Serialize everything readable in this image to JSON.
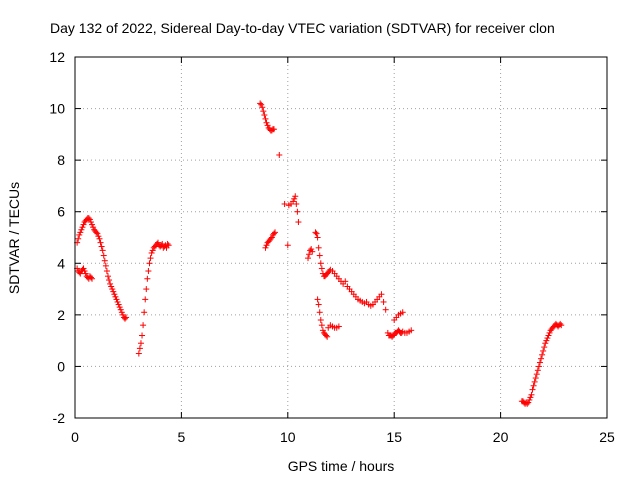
{
  "chart_data": {
    "type": "scatter",
    "title": "Day 132 of 2022, Sidereal Day-to-day VTEC variation (SDTVAR) for receiver clon",
    "xlabel": "GPS time / hours",
    "ylabel": "SDTVAR / TECUs",
    "xlim": [
      0,
      25
    ],
    "ylim": [
      -2,
      12
    ],
    "xticks": [
      0,
      5,
      10,
      15,
      20,
      25
    ],
    "yticks": [
      -2,
      0,
      2,
      4,
      6,
      8,
      10,
      12
    ],
    "grid": true,
    "marker": "+",
    "color": "#ff0000",
    "series": [
      {
        "name": "SDTVAR",
        "x": [
          0.1,
          0.15,
          0.2,
          0.25,
          0.3,
          0.35,
          0.4,
          0.45,
          0.5,
          0.55,
          0.6,
          0.65,
          0.7,
          0.75,
          0.8,
          0.85,
          0.9,
          0.95,
          1.0,
          1.05,
          1.1,
          1.15,
          1.2,
          1.25,
          1.3,
          1.35,
          1.4,
          1.45,
          1.5,
          1.55,
          1.6,
          1.65,
          1.7,
          1.75,
          1.8,
          1.85,
          1.9,
          1.95,
          2.0,
          2.05,
          2.1,
          2.15,
          2.2,
          2.25,
          2.3,
          2.35,
          2.4,
          0.1,
          0.15,
          0.2,
          0.25,
          0.3,
          0.35,
          0.4,
          0.45,
          0.5,
          0.55,
          0.6,
          0.65,
          0.7,
          0.75,
          0.8,
          3.0,
          3.05,
          3.1,
          3.15,
          3.2,
          3.25,
          3.3,
          3.35,
          3.4,
          3.45,
          3.5,
          3.55,
          3.6,
          3.65,
          3.7,
          3.75,
          3.8,
          3.85,
          3.9,
          3.95,
          4.0,
          4.05,
          4.1,
          4.15,
          4.2,
          4.25,
          4.3,
          4.35,
          4.4,
          8.7,
          8.75,
          8.8,
          8.85,
          8.9,
          8.95,
          9.0,
          9.05,
          9.1,
          9.15,
          9.2,
          9.25,
          9.3,
          9.35,
          8.95,
          9.0,
          9.05,
          9.1,
          9.15,
          9.2,
          9.25,
          9.3,
          9.35,
          9.4,
          9.6,
          9.85,
          10.0,
          10.05,
          10.15,
          10.25,
          10.3,
          10.35,
          10.4,
          10.45,
          10.5,
          10.95,
          11.0,
          11.05,
          11.1,
          11.15,
          11.3,
          11.35,
          11.4,
          11.45,
          11.5,
          11.55,
          11.6,
          11.65,
          11.7,
          11.75,
          11.8,
          11.85,
          11.9,
          11.95,
          12.0,
          12.1,
          12.2,
          12.3,
          12.4,
          12.5,
          12.6,
          12.7,
          12.8,
          12.9,
          13.0,
          13.1,
          13.2,
          13.3,
          13.4,
          13.5,
          13.6,
          13.7,
          13.8,
          13.9,
          14.0,
          14.1,
          14.2,
          14.3,
          14.4,
          14.5,
          14.6,
          11.4,
          11.45,
          11.5,
          11.55,
          11.6,
          11.65,
          11.7,
          11.75,
          11.8,
          11.85,
          11.9,
          12.0,
          12.1,
          12.2,
          12.3,
          12.4,
          14.7,
          14.75,
          14.8,
          14.85,
          14.9,
          14.95,
          15.0,
          15.05,
          15.1,
          15.15,
          15.2,
          15.25,
          15.3,
          15.35,
          15.4,
          15.5,
          15.6,
          15.7,
          15.8,
          15.0,
          15.1,
          15.2,
          15.3,
          15.4,
          21.0,
          21.05,
          21.1,
          21.15,
          21.2,
          21.25,
          21.3,
          21.35,
          21.4,
          21.45,
          21.5,
          21.55,
          21.6,
          21.65,
          21.7,
          21.75,
          21.8,
          21.85,
          21.9,
          21.95,
          22.0,
          22.05,
          22.1,
          22.15,
          22.2,
          22.25,
          22.3,
          22.35,
          22.4,
          22.45,
          22.5,
          22.55,
          22.6,
          22.65,
          22.7,
          22.75,
          22.8,
          22.85
        ],
        "y": [
          4.8,
          4.95,
          5.1,
          5.2,
          5.3,
          5.4,
          5.5,
          5.6,
          5.65,
          5.7,
          5.75,
          5.75,
          5.7,
          5.6,
          5.5,
          5.4,
          5.3,
          5.25,
          5.2,
          5.15,
          5.05,
          4.95,
          4.8,
          4.65,
          4.5,
          4.3,
          4.1,
          3.9,
          3.7,
          3.5,
          3.35,
          3.2,
          3.1,
          3.0,
          2.9,
          2.8,
          2.7,
          2.6,
          2.5,
          2.4,
          2.3,
          2.2,
          2.1,
          2.0,
          1.9,
          1.85,
          1.9,
          3.8,
          3.7,
          3.65,
          3.6,
          3.7,
          3.75,
          3.8,
          3.7,
          3.6,
          3.5,
          3.45,
          3.4,
          3.5,
          3.45,
          3.4,
          0.5,
          0.7,
          0.9,
          1.2,
          1.6,
          2.1,
          2.6,
          3.0,
          3.4,
          3.7,
          4.0,
          4.2,
          4.4,
          4.5,
          4.6,
          4.65,
          4.7,
          4.75,
          4.8,
          4.7,
          4.65,
          4.7,
          4.75,
          4.6,
          4.65,
          4.7,
          4.6,
          4.75,
          4.7,
          10.2,
          10.15,
          10.05,
          9.9,
          9.75,
          9.6,
          9.45,
          9.35,
          9.25,
          9.2,
          9.15,
          9.15,
          9.2,
          9.2,
          4.6,
          4.7,
          4.8,
          4.85,
          4.9,
          4.95,
          5.0,
          5.1,
          5.15,
          5.2,
          8.2,
          6.3,
          4.7,
          6.25,
          6.3,
          6.4,
          6.5,
          6.6,
          6.3,
          6.0,
          5.6,
          4.2,
          4.35,
          4.5,
          4.55,
          4.45,
          5.2,
          5.15,
          5.0,
          4.6,
          4.3,
          4.0,
          3.8,
          3.6,
          3.5,
          3.5,
          3.55,
          3.6,
          3.65,
          3.7,
          3.75,
          3.7,
          3.6,
          3.5,
          3.4,
          3.3,
          3.2,
          3.3,
          3.1,
          3.0,
          2.9,
          2.8,
          2.7,
          2.6,
          2.55,
          2.5,
          2.45,
          2.5,
          2.4,
          2.35,
          2.4,
          2.5,
          2.6,
          2.7,
          2.8,
          2.5,
          2.2,
          2.6,
          2.4,
          2.1,
          1.8,
          1.6,
          1.4,
          1.3,
          1.25,
          1.2,
          1.15,
          1.5,
          1.6,
          1.55,
          1.5,
          1.5,
          1.55,
          1.3,
          1.2,
          1.2,
          1.2,
          1.15,
          1.2,
          1.25,
          1.3,
          1.3,
          1.35,
          1.4,
          1.35,
          1.3,
          1.3,
          1.35,
          1.3,
          1.3,
          1.35,
          1.4,
          1.8,
          1.9,
          2.0,
          2.05,
          2.1,
          -1.35,
          -1.35,
          -1.4,
          -1.45,
          -1.4,
          -1.45,
          -1.4,
          -1.3,
          -1.2,
          -1.1,
          -0.9,
          -0.75,
          -0.6,
          -0.45,
          -0.3,
          -0.15,
          0.0,
          0.15,
          0.3,
          0.45,
          0.6,
          0.75,
          0.9,
          1.0,
          1.1,
          1.2,
          1.3,
          1.4,
          1.45,
          1.5,
          1.55,
          1.6,
          1.65,
          1.6,
          1.55,
          1.6,
          1.65,
          1.6
        ]
      }
    ]
  }
}
